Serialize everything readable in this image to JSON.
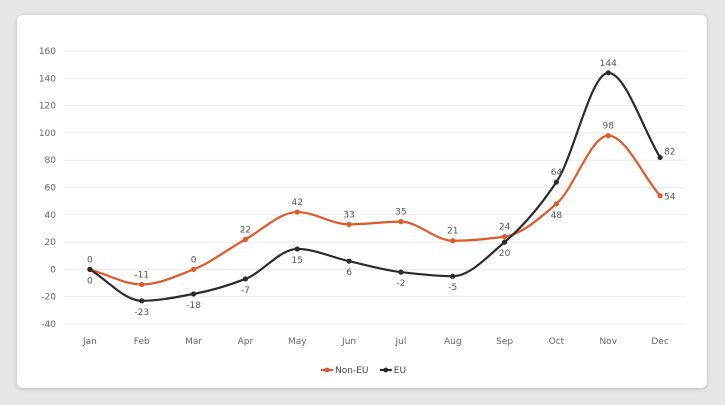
{
  "chart_data": {
    "type": "line",
    "title": "",
    "xlabel": "",
    "ylabel": "",
    "categories": [
      "Jan",
      "Feb",
      "Mar",
      "Apr",
      "May",
      "Jun",
      "Jul",
      "Aug",
      "Sep",
      "Oct",
      "Nov",
      "Dec"
    ],
    "ylim": [
      -40,
      160
    ],
    "yticks": [
      -40,
      -20,
      0,
      20,
      40,
      60,
      80,
      100,
      120,
      140,
      160
    ],
    "grid": true,
    "legend_position": "bottom-center",
    "series": [
      {
        "name": "Non-EU",
        "color": "#e0592a",
        "values": [
          0,
          -11,
          0,
          22,
          42,
          33,
          35,
          21,
          24,
          48,
          98,
          54
        ]
      },
      {
        "name": "EU",
        "color": "#2b2b2b",
        "values": [
          0,
          -23,
          -18,
          -7,
          15,
          6,
          -2,
          -5,
          20,
          64,
          144,
          82
        ]
      }
    ]
  }
}
